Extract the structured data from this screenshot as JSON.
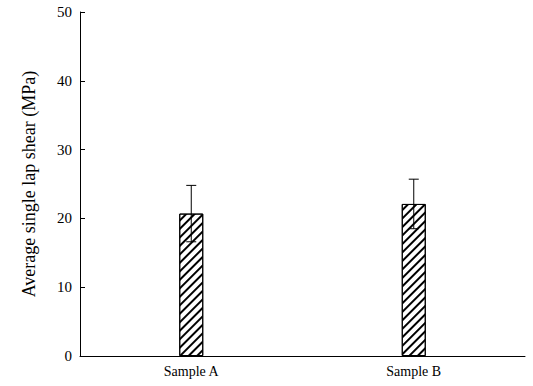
{
  "chart_data": {
    "type": "bar",
    "y_label": "Average single lap shear (MPa)",
    "categories": [
      "Sample A",
      "Sample B"
    ],
    "values": [
      20.7,
      22.1
    ],
    "errors": [
      4.1,
      3.6
    ],
    "color": "#000000",
    "ylim": [
      0,
      50
    ],
    "yticks": [
      0,
      10,
      20,
      30,
      40,
      50
    ],
    "grid": false
  }
}
